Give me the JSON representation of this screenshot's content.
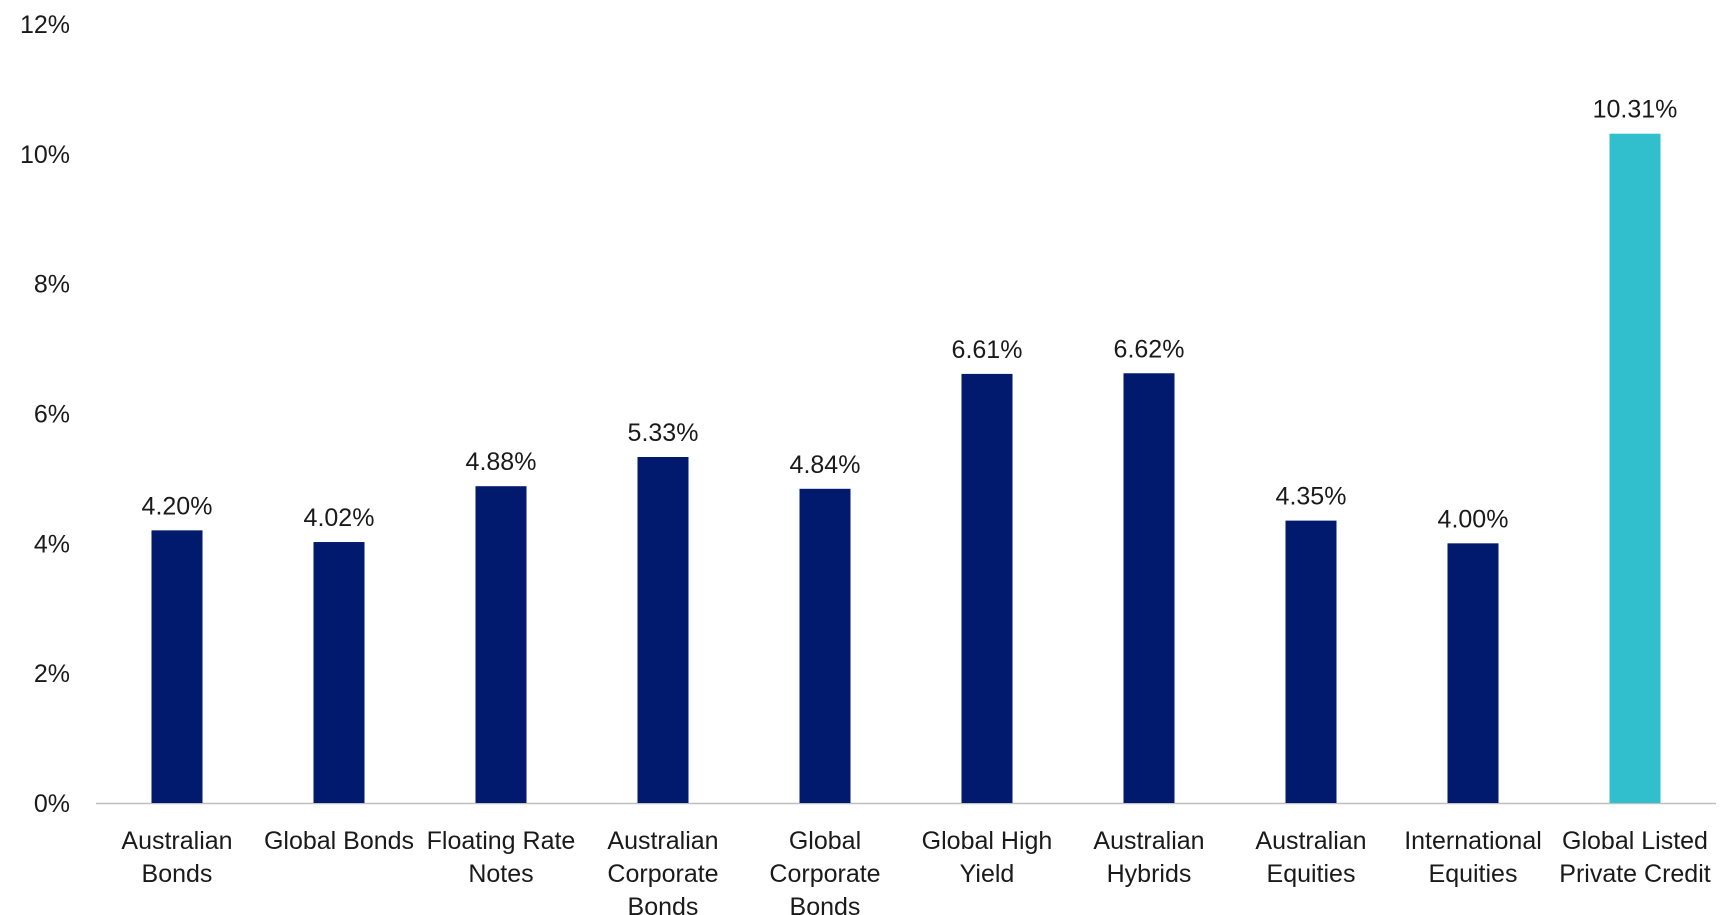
{
  "chart_data": {
    "type": "bar",
    "categories": [
      [
        "Australian",
        "Bonds"
      ],
      [
        "Global Bonds"
      ],
      [
        "Floating Rate",
        "Notes"
      ],
      [
        "Australian",
        "Corporate",
        "Bonds"
      ],
      [
        "Global",
        "Corporate",
        "Bonds"
      ],
      [
        "Global High",
        "Yield"
      ],
      [
        "Australian",
        "Hybrids"
      ],
      [
        "Australian",
        "Equities"
      ],
      [
        "International",
        "Equities"
      ],
      [
        "Global Listed",
        "Private Credit"
      ]
    ],
    "values": [
      4.2,
      4.02,
      4.88,
      5.33,
      4.84,
      6.61,
      6.62,
      4.35,
      4.0,
      10.31
    ],
    "data_labels": [
      "4.20%",
      "4.02%",
      "4.88%",
      "5.33%",
      "4.84%",
      "6.61%",
      "6.62%",
      "4.35%",
      "4.00%",
      "10.31%"
    ],
    "ylim": [
      0,
      12
    ],
    "yticks": [
      0,
      2,
      4,
      6,
      8,
      10,
      12
    ],
    "ytick_labels": [
      "0%",
      "2%",
      "4%",
      "6%",
      "8%",
      "10%",
      "12%"
    ],
    "grid": false,
    "legend": "none",
    "bar_colors": [
      "#021A6D",
      "#021A6D",
      "#021A6D",
      "#021A6D",
      "#021A6D",
      "#021A6D",
      "#021A6D",
      "#021A6D",
      "#021A6D",
      "#31BFCE"
    ],
    "axis_color": "#BFBFBF"
  }
}
